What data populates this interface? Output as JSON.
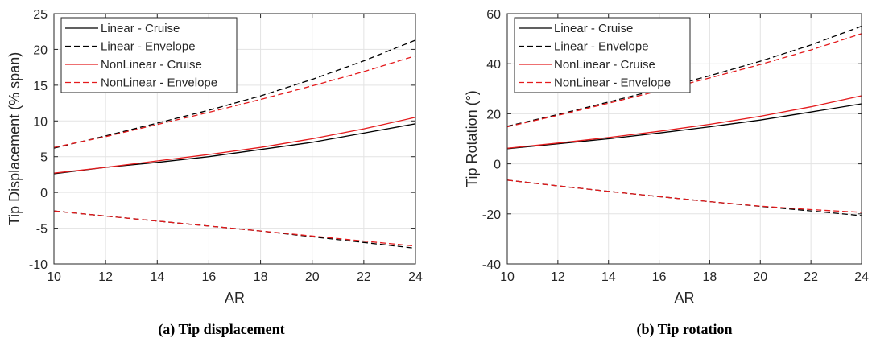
{
  "chart_data": [
    {
      "type": "line",
      "title": "",
      "caption": "(a) Tip displacement",
      "xlabel": "AR",
      "ylabel": "Tip Displacement (% span)",
      "xlim": [
        10,
        24
      ],
      "ylim": [
        -10,
        25
      ],
      "xticks": [
        10,
        12,
        14,
        16,
        18,
        20,
        22,
        24
      ],
      "yticks": [
        -10,
        -5,
        0,
        5,
        10,
        15,
        20,
        25
      ],
      "grid": true,
      "legend_position": "top-left",
      "x": [
        10,
        12,
        14,
        16,
        18,
        20,
        22,
        24
      ],
      "series": [
        {
          "name": "Linear - Cruise",
          "color": "#000000",
          "dash": "solid",
          "values": [
            2.6,
            3.5,
            4.2,
            5.0,
            6.0,
            7.0,
            8.3,
            9.6
          ]
        },
        {
          "name": "Linear - Envelope",
          "color": "#000000",
          "dash": "dashed",
          "values": [
            6.2,
            7.9,
            9.7,
            11.5,
            13.5,
            15.8,
            18.4,
            21.3
          ]
        },
        {
          "name": "NonLinear - Cruise",
          "color": "#e41a1c",
          "dash": "solid",
          "values": [
            2.7,
            3.5,
            4.4,
            5.3,
            6.3,
            7.5,
            8.9,
            10.5
          ]
        },
        {
          "name": "NonLinear - Envelope",
          "color": "#e41a1c",
          "dash": "dashed",
          "values": [
            6.3,
            7.8,
            9.5,
            11.2,
            13.0,
            14.9,
            16.9,
            19.1
          ]
        },
        {
          "name": "",
          "color": "#000000",
          "dash": "dashed",
          "values": [
            -2.6,
            -3.3,
            -4.0,
            -4.7,
            -5.4,
            -6.2,
            -7.0,
            -7.8
          ]
        },
        {
          "name": "",
          "color": "#e41a1c",
          "dash": "dashed",
          "values": [
            -2.6,
            -3.3,
            -4.0,
            -4.7,
            -5.4,
            -6.1,
            -6.8,
            -7.5
          ]
        }
      ]
    },
    {
      "type": "line",
      "title": "",
      "caption": "(b) Tip rotation",
      "xlabel": "AR",
      "ylabel": "Tip Rotation (°)",
      "xlim": [
        10,
        24
      ],
      "ylim": [
        -40,
        60
      ],
      "xticks": [
        10,
        12,
        14,
        16,
        18,
        20,
        22,
        24
      ],
      "yticks": [
        -40,
        -20,
        0,
        20,
        40,
        60
      ],
      "grid": true,
      "legend_position": "top-left",
      "x": [
        10,
        12,
        14,
        16,
        18,
        20,
        22,
        24
      ],
      "series": [
        {
          "name": "Linear - Cruise",
          "color": "#000000",
          "dash": "solid",
          "values": [
            6.0,
            8.0,
            10.0,
            12.3,
            14.8,
            17.5,
            20.7,
            24.0
          ]
        },
        {
          "name": "Linear - Envelope",
          "color": "#000000",
          "dash": "dashed",
          "values": [
            15.0,
            19.7,
            24.7,
            29.8,
            35.2,
            41.0,
            47.5,
            55.0
          ]
        },
        {
          "name": "NonLinear - Cruise",
          "color": "#e41a1c",
          "dash": "solid",
          "values": [
            6.2,
            8.3,
            10.5,
            13.0,
            15.8,
            19.0,
            22.8,
            27.2
          ]
        },
        {
          "name": "NonLinear - Envelope",
          "color": "#e41a1c",
          "dash": "dashed",
          "values": [
            14.8,
            19.4,
            24.2,
            29.2,
            34.3,
            39.7,
            45.5,
            52.0
          ]
        },
        {
          "name": "",
          "color": "#000000",
          "dash": "dashed",
          "values": [
            -6.5,
            -8.8,
            -11.0,
            -13.1,
            -15.1,
            -17.0,
            -18.8,
            -20.7
          ]
        },
        {
          "name": "",
          "color": "#e41a1c",
          "dash": "dashed",
          "values": [
            -6.5,
            -8.8,
            -11.0,
            -13.1,
            -15.1,
            -16.9,
            -18.3,
            -19.4
          ]
        }
      ]
    }
  ]
}
